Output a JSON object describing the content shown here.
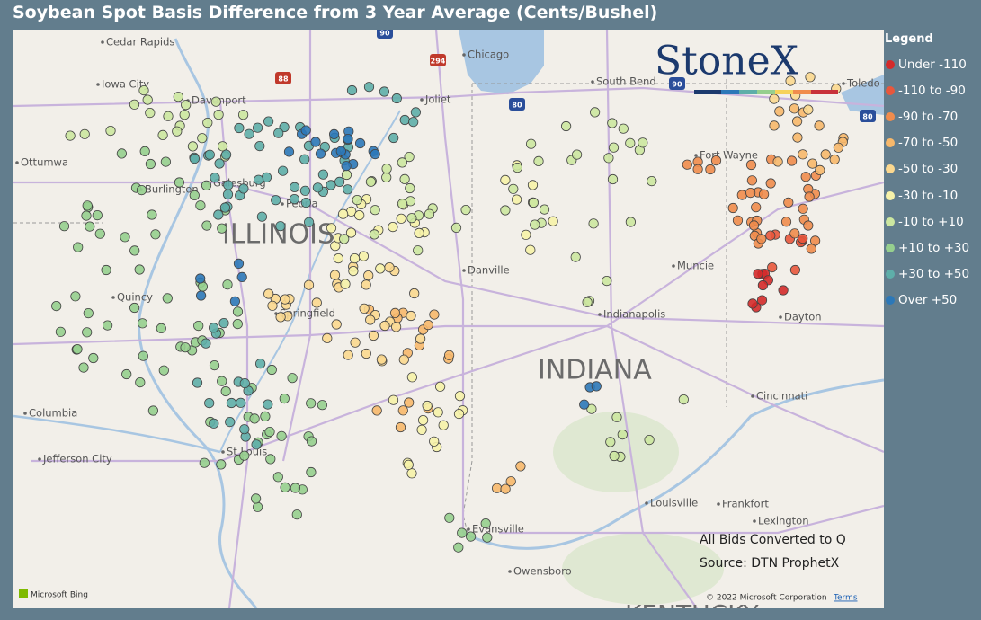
{
  "title": "Soybean Spot Basis Difference from 3 Year Average (Cents/Bushel)",
  "logo": "StoneX",
  "legend": {
    "title": "Legend",
    "items": [
      {
        "label": "Under -110",
        "color": "#d42a2a"
      },
      {
        "label": "-110 to -90",
        "color": "#e8573c"
      },
      {
        "label": "-90 to -70",
        "color": "#f08c4d"
      },
      {
        "label": "-70 to -50",
        "color": "#f7b86b"
      },
      {
        "label": "-50 to -30",
        "color": "#fbd88f"
      },
      {
        "label": "-30 to -10",
        "color": "#f6f2a9"
      },
      {
        "label": "-10 to +10",
        "color": "#cce7a0"
      },
      {
        "label": "+10 to +30",
        "color": "#96cf8e"
      },
      {
        "label": "+30 to +50",
        "color": "#5eaea9"
      },
      {
        "label": "Over +50",
        "color": "#2c78b8"
      }
    ]
  },
  "map": {
    "states": [
      "ILLINOIS",
      "INDIANA",
      "KENTUCKY"
    ],
    "cities": [
      "Cedar Rapids",
      "Iowa City",
      "Davenport",
      "Ottumwa",
      "Burlington",
      "Galesburg",
      "Peoria",
      "Quincy",
      "Springfield",
      "Columbia",
      "Jefferson City",
      "St Louis",
      "Chicago",
      "Joliet",
      "South Bend",
      "Fort Wayne",
      "Muncie",
      "Indianapolis",
      "Dayton",
      "Danville",
      "Cincinnati",
      "Evansville",
      "Owensboro",
      "Louisville",
      "Frankfort",
      "Lexington",
      "Toledo"
    ],
    "highways": [
      "90",
      "294",
      "88",
      "80",
      "90",
      "80"
    ],
    "notes": [
      "All Bids Converted to Q",
      "Source: DTN ProphetX"
    ],
    "attribution": {
      "provider": "Microsoft Bing",
      "copyright": "© 2022 Microsoft Corporation",
      "terms": "Terms"
    }
  }
}
